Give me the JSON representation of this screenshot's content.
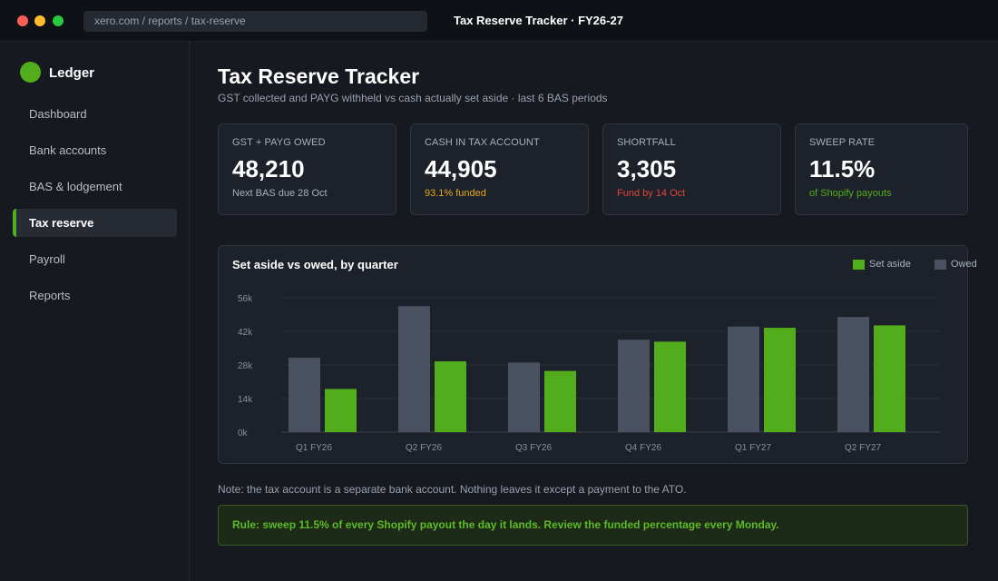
{
  "window": {
    "url": "xero.com / reports / tax-reserve",
    "title": "Tax Reserve Tracker  ·  FY26-27"
  },
  "sidebar": {
    "brand": "Ledger",
    "items": [
      {
        "label": "Dashboard",
        "active": false
      },
      {
        "label": "Bank accounts",
        "active": false
      },
      {
        "label": "BAS & lodgement",
        "active": false
      },
      {
        "label": "Tax reserve",
        "active": true
      },
      {
        "label": "Payroll",
        "active": false
      },
      {
        "label": "Reports",
        "active": false
      }
    ]
  },
  "page": {
    "title": "Tax Reserve Tracker",
    "subtitle": "GST collected and PAYG withheld vs cash actually set aside  ·  last 6 BAS periods"
  },
  "cards": [
    {
      "label": "GST + PAYG OWED",
      "value": "48,210",
      "note": "Next BAS due 28 Oct",
      "note_color": "#aab0ba"
    },
    {
      "label": "CASH IN TAX ACCOUNT",
      "value": "44,905",
      "note": "93.1% funded",
      "note_color": "#e5a823"
    },
    {
      "label": "SHORTFALL",
      "value": "3,305",
      "note": "Fund by 14 Oct",
      "note_color": "#e0473c"
    },
    {
      "label": "SWEEP RATE",
      "value": "11.5%",
      "note": "of Shopify payouts",
      "note_color": "#52ac1c"
    }
  ],
  "colors": {
    "accent": "#52ac1c",
    "owed_bar": "#4a5160",
    "set_aside_bar": "#52ac1c"
  },
  "chart_data": {
    "type": "bar",
    "title": "Set aside vs owed, by quarter",
    "categories": [
      "Q1 FY26",
      "Q2 FY26",
      "Q3 FY26",
      "Q4 FY26",
      "Q1 FY27",
      "Q2 FY27"
    ],
    "series": [
      {
        "name": "Owed",
        "values": [
          31000,
          52500,
          29000,
          38500,
          44000,
          48000
        ]
      },
      {
        "name": "Set aside",
        "values": [
          18000,
          29500,
          25500,
          37700,
          43500,
          44500
        ]
      }
    ],
    "ylim": [
      0,
      56000
    ],
    "yticks": [
      0,
      14000,
      28000,
      42000,
      56000
    ],
    "ytick_labels": [
      "0k",
      "14k",
      "28k",
      "42k",
      "56k"
    ],
    "legend": [
      "Set aside",
      "Owed"
    ],
    "legend_position": "top-right",
    "grid": true
  },
  "note": "Note: the tax account is a separate bank account. Nothing leaves it except a payment to the ATO.",
  "rule": "Rule: sweep 11.5% of every Shopify payout the day it lands. Review the funded percentage every Monday."
}
